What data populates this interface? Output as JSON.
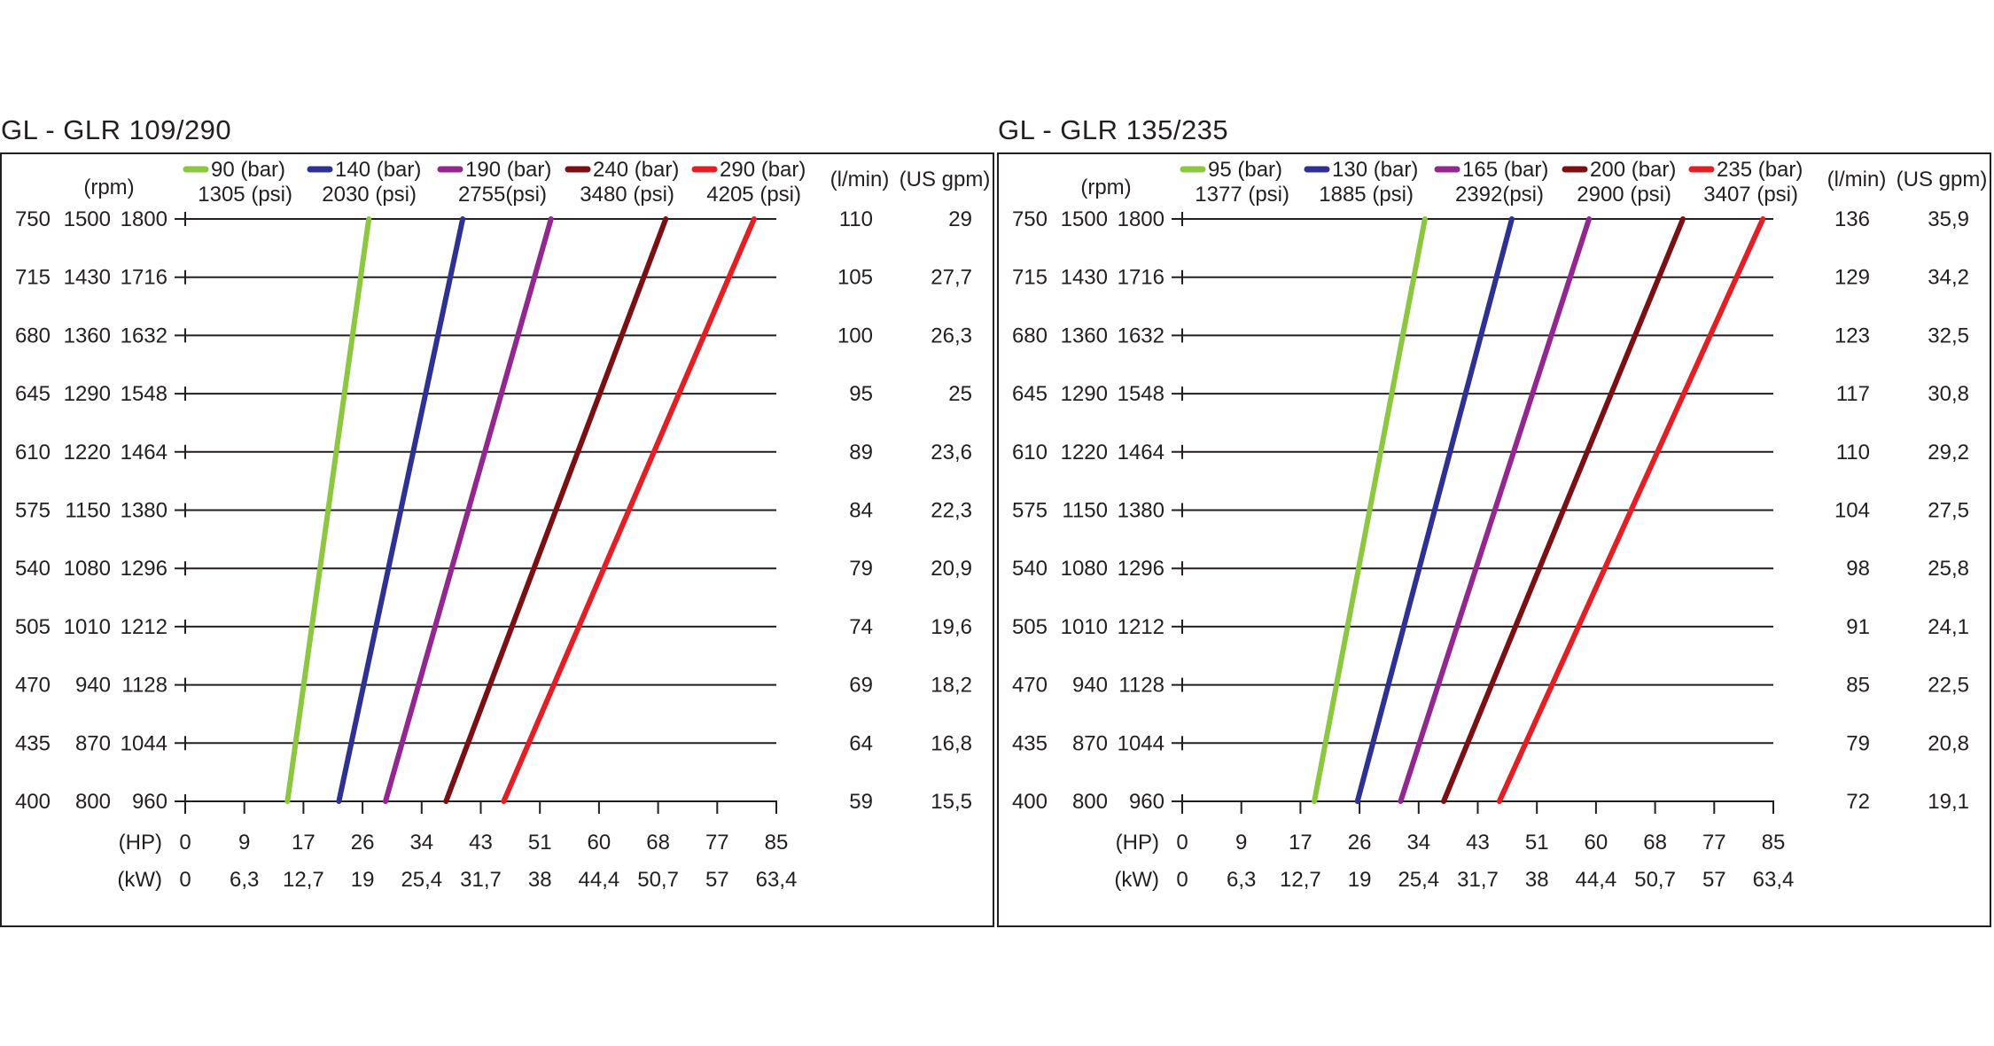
{
  "chart_data": [
    {
      "type": "line",
      "title": "GL - GLR 109/290",
      "ylabel_units": [
        "(rpm)",
        "(l/min)",
        "(US gpm)"
      ],
      "xlabel_units": [
        "(HP)",
        "(kW)"
      ],
      "rpm_columns": [
        [
          "750",
          "1500",
          "1800"
        ],
        [
          "715",
          "1430",
          "1716"
        ],
        [
          "680",
          "1360",
          "1632"
        ],
        [
          "645",
          "1290",
          "1548"
        ],
        [
          "610",
          "1220",
          "1464"
        ],
        [
          "575",
          "1150",
          "1380"
        ],
        [
          "540",
          "1080",
          "1296"
        ],
        [
          "505",
          "1010",
          "1212"
        ],
        [
          "470",
          "940",
          "1128"
        ],
        [
          "435",
          "870",
          "1044"
        ],
        [
          "400",
          "800",
          "960"
        ]
      ],
      "flow_lmin": [
        "110",
        "105",
        "100",
        "95",
        "89",
        "84",
        "79",
        "74",
        "69",
        "64",
        "59"
      ],
      "flow_usgpm": [
        "29",
        "27,7",
        "26,3",
        "25",
        "23,6",
        "22,3",
        "20,9",
        "19,6",
        "18,2",
        "16,8",
        "15,5"
      ],
      "hp_ticks": [
        "0",
        "9",
        "17",
        "26",
        "34",
        "43",
        "51",
        "60",
        "68",
        "77",
        "85"
      ],
      "kw_ticks": [
        "0",
        "6,3",
        "12,7",
        "19",
        "25,4",
        "31,7",
        "38",
        "44,4",
        "50,7",
        "57",
        "63,4"
      ],
      "x_range_hp": [
        0,
        85
      ],
      "y_range_rpm_row3": [
        960,
        1800
      ],
      "grid": "horizontal",
      "legend_placement": "top",
      "series": [
        {
          "name": "90 (bar)",
          "name2": "1305 (psi)",
          "color": "#8dc63f",
          "hp": [
            14.7,
            26.4
          ]
        },
        {
          "name": "140 (bar)",
          "name2": "2030 (psi)",
          "color": "#2e3192",
          "hp": [
            22.1,
            39.9
          ]
        },
        {
          "name": "190 (bar)",
          "name2": "2755(psi)",
          "color": "#92278f",
          "hp": [
            28.8,
            52.6
          ]
        },
        {
          "name": "240 (bar)",
          "name2": "3480 (psi)",
          "color": "#7a0f14",
          "hp": [
            37.5,
            69.1
          ]
        },
        {
          "name": "290 (bar)",
          "name2": "4205 (psi)",
          "color": "#e31e24",
          "hp": [
            45.8,
            81.8
          ]
        }
      ]
    },
    {
      "type": "line",
      "title": "GL - GLR 135/235",
      "ylabel_units": [
        "(rpm)",
        "(l/min)",
        "(US gpm)"
      ],
      "xlabel_units": [
        "(HP)",
        "(kW)"
      ],
      "rpm_columns": [
        [
          "750",
          "1500",
          "1800"
        ],
        [
          "715",
          "1430",
          "1716"
        ],
        [
          "680",
          "1360",
          "1632"
        ],
        [
          "645",
          "1290",
          "1548"
        ],
        [
          "610",
          "1220",
          "1464"
        ],
        [
          "575",
          "1150",
          "1380"
        ],
        [
          "540",
          "1080",
          "1296"
        ],
        [
          "505",
          "1010",
          "1212"
        ],
        [
          "470",
          "940",
          "1128"
        ],
        [
          "435",
          "870",
          "1044"
        ],
        [
          "400",
          "800",
          "960"
        ]
      ],
      "flow_lmin": [
        "136",
        "129",
        "123",
        "117",
        "110",
        "104",
        "98",
        "91",
        "85",
        "79",
        "72"
      ],
      "flow_usgpm": [
        "35,9",
        "34,2",
        "32,5",
        "30,8",
        "29,2",
        "27,5",
        "25,8",
        "24,1",
        "22,5",
        "20,8",
        "19,1"
      ],
      "hp_ticks": [
        "0",
        "9",
        "17",
        "26",
        "34",
        "43",
        "51",
        "60",
        "68",
        "77",
        "85"
      ],
      "kw_ticks": [
        "0",
        "6,3",
        "12,7",
        "19",
        "25,4",
        "31,7",
        "38",
        "44,4",
        "50,7",
        "57",
        "63,4"
      ],
      "x_range_hp": [
        0,
        85
      ],
      "y_range_rpm_row3": [
        960,
        1800
      ],
      "grid": "horizontal",
      "legend_placement": "top",
      "series": [
        {
          "name": "95 (bar)",
          "name2": "1377 (psi)",
          "color": "#8dc63f",
          "hp": [
            19.0,
            34.9
          ]
        },
        {
          "name": "130 (bar)",
          "name2": "1885 (psi)",
          "color": "#2e3192",
          "hp": [
            25.2,
            47.4
          ]
        },
        {
          "name": "165 (bar)",
          "name2": "2392(psi)",
          "color": "#92278f",
          "hp": [
            31.4,
            58.5
          ]
        },
        {
          "name": "200 (bar)",
          "name2": "2900 (psi)",
          "color": "#7a0f14",
          "hp": [
            37.6,
            72.0
          ]
        },
        {
          "name": "235 (bar)",
          "name2": "3407 (psi)",
          "color": "#e31e24",
          "hp": [
            45.6,
            83.5
          ]
        }
      ]
    }
  ]
}
